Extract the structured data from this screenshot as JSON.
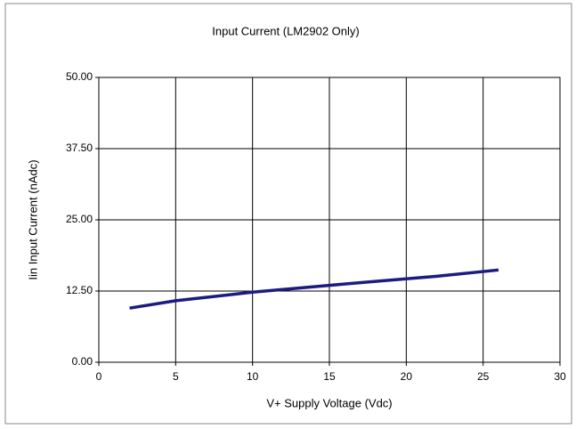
{
  "chart_data": {
    "type": "line",
    "title": "Input Current (LM2902 Only)",
    "xlabel": "V+  Supply Voltage (Vdc)",
    "ylabel": "Iin Input Current (nAdc)",
    "x": [
      2,
      5,
      10,
      15,
      18,
      22,
      26
    ],
    "series": [
      {
        "name": "Iin",
        "color": "#1c1c80",
        "values": [
          9.5,
          10.8,
          12.3,
          13.5,
          14.2,
          15.1,
          16.2
        ]
      }
    ],
    "xlim": [
      0,
      30
    ],
    "xticks": [
      0,
      5,
      10,
      15,
      20,
      25,
      30
    ],
    "ylim": [
      0,
      50
    ],
    "yticks": [
      {
        "value": 0,
        "label": "0.00"
      },
      {
        "value": 12.5,
        "label": "12.50"
      },
      {
        "value": 25,
        "label": "25.00"
      },
      {
        "value": 37.5,
        "label": "37.50"
      },
      {
        "value": 50,
        "label": "50.00"
      }
    ],
    "grid": true
  }
}
